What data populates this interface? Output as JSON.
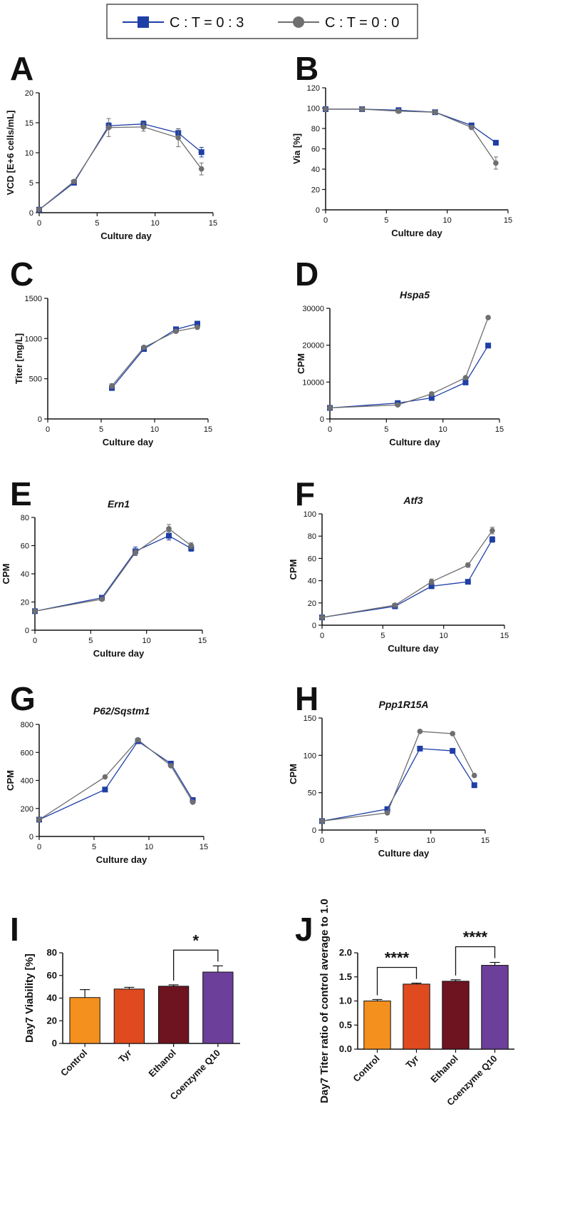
{
  "legend": {
    "entries": [
      {
        "label": "C : T = 0 : 3",
        "color": "#1f3fa6",
        "marker": "square"
      },
      {
        "label": "C : T = 0 : 0",
        "color": "#6f6f6f",
        "marker": "circle"
      }
    ]
  },
  "chart_data": [
    {
      "panel": "A",
      "type": "line",
      "title": "",
      "xlabel": "Culture day",
      "ylabel": "VCD [E+6 cells/mL]",
      "xlim": [
        0,
        15
      ],
      "ylim": [
        0,
        20
      ],
      "xticks": [
        0,
        5,
        10,
        15
      ],
      "yticks": [
        0,
        5,
        10,
        15,
        20
      ],
      "series": [
        {
          "name": "C : T = 0 : 3",
          "x": [
            0,
            3,
            6,
            9,
            12,
            14
          ],
          "y": [
            0.5,
            5.0,
            14.5,
            14.8,
            13.3,
            10.1
          ],
          "err": [
            0,
            0.2,
            0.5,
            0.5,
            0.7,
            0.8
          ]
        },
        {
          "name": "C : T = 0 : 0",
          "x": [
            0,
            3,
            6,
            9,
            12,
            14
          ],
          "y": [
            0.5,
            5.2,
            14.2,
            14.3,
            12.5,
            7.3
          ],
          "err": [
            0,
            0.2,
            1.5,
            0.7,
            1.5,
            1.0
          ]
        }
      ]
    },
    {
      "panel": "B",
      "type": "line",
      "title": "",
      "xlabel": "Culture day",
      "ylabel": "Via [%]",
      "xlim": [
        0,
        15
      ],
      "ylim": [
        0,
        120
      ],
      "xticks": [
        0,
        5,
        10,
        15
      ],
      "yticks": [
        0,
        20,
        40,
        60,
        80,
        100,
        120
      ],
      "series": [
        {
          "name": "C : T = 0 : 3",
          "x": [
            0,
            3,
            6,
            9,
            12,
            14
          ],
          "y": [
            99,
            99,
            98,
            96,
            83,
            66
          ],
          "err": [
            0,
            0,
            1,
            1,
            2,
            2
          ]
        },
        {
          "name": "C : T = 0 : 0",
          "x": [
            0,
            3,
            6,
            9,
            12,
            14
          ],
          "y": [
            99,
            99,
            97,
            96,
            81,
            46
          ],
          "err": [
            0,
            0,
            1,
            1,
            2,
            6
          ]
        }
      ]
    },
    {
      "panel": "C",
      "type": "line",
      "title": "",
      "xlabel": "Culture day",
      "ylabel": "Titer [mg/L]",
      "xlim": [
        0,
        15
      ],
      "ylim": [
        0,
        1500
      ],
      "xticks": [
        0,
        5,
        10,
        15
      ],
      "yticks": [
        0,
        500,
        1000,
        1500
      ],
      "series": [
        {
          "name": "C : T = 0 : 3",
          "x": [
            6,
            9,
            12,
            14
          ],
          "y": [
            385,
            870,
            1115,
            1185
          ],
          "err": [
            30,
            20,
            20,
            25
          ]
        },
        {
          "name": "C : T = 0 : 0",
          "x": [
            6,
            9,
            12,
            14
          ],
          "y": [
            410,
            890,
            1090,
            1140
          ],
          "err": [
            30,
            20,
            20,
            20
          ]
        }
      ]
    },
    {
      "panel": "D",
      "type": "line",
      "title": "Hspa5",
      "xlabel": "Culture day",
      "ylabel": "CPM",
      "xlim": [
        0,
        15
      ],
      "ylim": [
        0,
        30000
      ],
      "xticks": [
        0,
        5,
        10,
        15
      ],
      "yticks": [
        0,
        10000,
        20000,
        30000
      ],
      "series": [
        {
          "name": "C : T = 0 : 3",
          "x": [
            0,
            6,
            9,
            12,
            14
          ],
          "y": [
            3000,
            4300,
            5700,
            9900,
            19900
          ],
          "err": [
            0,
            0,
            0,
            0,
            0
          ]
        },
        {
          "name": "C : T = 0 : 0",
          "x": [
            0,
            6,
            9,
            12,
            14
          ],
          "y": [
            3000,
            3800,
            6800,
            11200,
            27500
          ],
          "err": [
            0,
            0,
            0,
            0,
            0
          ]
        }
      ]
    },
    {
      "panel": "E",
      "type": "line",
      "title": "Ern1",
      "xlabel": "Culture day",
      "ylabel": "CPM",
      "xlim": [
        0,
        15
      ],
      "ylim": [
        0,
        80
      ],
      "xticks": [
        0,
        5,
        10,
        15
      ],
      "yticks": [
        0,
        20,
        40,
        60,
        80
      ],
      "series": [
        {
          "name": "C : T = 0 : 3",
          "x": [
            0,
            6,
            9,
            12,
            14
          ],
          "y": [
            13.5,
            23,
            56,
            67,
            58
          ],
          "err": [
            1,
            1,
            3,
            3,
            2
          ]
        },
        {
          "name": "C : T = 0 : 0",
          "x": [
            0,
            6,
            9,
            12,
            14
          ],
          "y": [
            13.5,
            22,
            55,
            72,
            60
          ],
          "err": [
            1,
            1,
            2,
            3,
            2
          ]
        }
      ]
    },
    {
      "panel": "F",
      "type": "line",
      "title": "Atf3",
      "xlabel": "Culture day",
      "ylabel": "CPM",
      "xlim": [
        0,
        15
      ],
      "ylim": [
        0,
        100
      ],
      "xticks": [
        0,
        5,
        10,
        15
      ],
      "yticks": [
        0,
        20,
        40,
        60,
        80,
        100
      ],
      "series": [
        {
          "name": "C : T = 0 : 3",
          "x": [
            0,
            6,
            9,
            12,
            14
          ],
          "y": [
            7,
            17,
            35,
            39,
            77
          ],
          "err": [
            0.5,
            1,
            2,
            1.5,
            2.5
          ]
        },
        {
          "name": "C : T = 0 : 0",
          "x": [
            0,
            6,
            9,
            12,
            14
          ],
          "y": [
            7,
            18,
            39,
            54,
            85
          ],
          "err": [
            0.5,
            1,
            2.5,
            2,
            3
          ]
        }
      ]
    },
    {
      "panel": "G",
      "type": "line",
      "title": "P62/Sqstm1",
      "xlabel": "Culture day",
      "ylabel": "CPM",
      "xlim": [
        0,
        15
      ],
      "ylim": [
        0,
        800
      ],
      "xticks": [
        0,
        5,
        10,
        15
      ],
      "yticks": [
        0,
        200,
        400,
        600,
        800
      ],
      "series": [
        {
          "name": "C : T = 0 : 3",
          "x": [
            0,
            6,
            9,
            12,
            14
          ],
          "y": [
            120,
            335,
            680,
            520,
            260
          ],
          "err": [
            5,
            5,
            10,
            10,
            10
          ]
        },
        {
          "name": "C : T = 0 : 0",
          "x": [
            0,
            6,
            9,
            12,
            14
          ],
          "y": [
            120,
            425,
            690,
            505,
            245
          ],
          "err": [
            5,
            5,
            10,
            10,
            10
          ]
        }
      ]
    },
    {
      "panel": "H",
      "type": "line",
      "title": "Ppp1R15A",
      "xlabel": "Culture day",
      "ylabel": "CPM",
      "xlim": [
        0,
        15
      ],
      "ylim": [
        0,
        150
      ],
      "xticks": [
        0,
        5,
        10,
        15
      ],
      "yticks": [
        0,
        50,
        100,
        150
      ],
      "series": [
        {
          "name": "C : T = 0 : 3",
          "x": [
            0,
            6,
            9,
            12,
            14
          ],
          "y": [
            12,
            28,
            109,
            106,
            60
          ],
          "err": [
            1,
            1,
            2,
            2,
            3
          ]
        },
        {
          "name": "C : T = 0 : 0",
          "x": [
            0,
            6,
            9,
            12,
            14
          ],
          "y": [
            12,
            23,
            132,
            129,
            73
          ],
          "err": [
            1,
            1,
            2,
            2,
            2
          ]
        }
      ]
    },
    {
      "panel": "I",
      "type": "bar",
      "title": "",
      "xlabel": "",
      "ylabel": "Day7 Viability [%]",
      "ylim": [
        0,
        80
      ],
      "yticks": [
        0,
        20,
        40,
        60,
        80
      ],
      "categories": [
        "Control",
        "Tyr",
        "Ethanol",
        "Coenzyme Q10"
      ],
      "values": [
        40.5,
        48,
        50.5,
        63
      ],
      "errors": [
        7,
        1.5,
        1.2,
        5.5
      ],
      "colors": [
        "#f4901e",
        "#df4a1f",
        "#6e1420",
        "#6c3f9a"
      ],
      "significance": [
        {
          "from": 2,
          "to": 3,
          "label": "*"
        }
      ]
    },
    {
      "panel": "J",
      "type": "bar",
      "title": "",
      "xlabel": "",
      "ylabel": "Day7 Titer ratio of control average to 1.0",
      "ylim": [
        0,
        2.0
      ],
      "yticks": [
        0.0,
        0.5,
        1.0,
        1.5,
        2.0
      ],
      "categories": [
        "Control",
        "Tyr",
        "Ethanol",
        "Coenzyme Q10"
      ],
      "values": [
        1.0,
        1.35,
        1.41,
        1.74
      ],
      "errors": [
        0.03,
        0.02,
        0.03,
        0.06
      ],
      "colors": [
        "#f4901e",
        "#df4a1f",
        "#6e1420",
        "#6c3f9a"
      ],
      "significance": [
        {
          "from": 0,
          "to": 1,
          "label": "****"
        },
        {
          "from": 2,
          "to": 3,
          "label": "****"
        }
      ]
    }
  ]
}
